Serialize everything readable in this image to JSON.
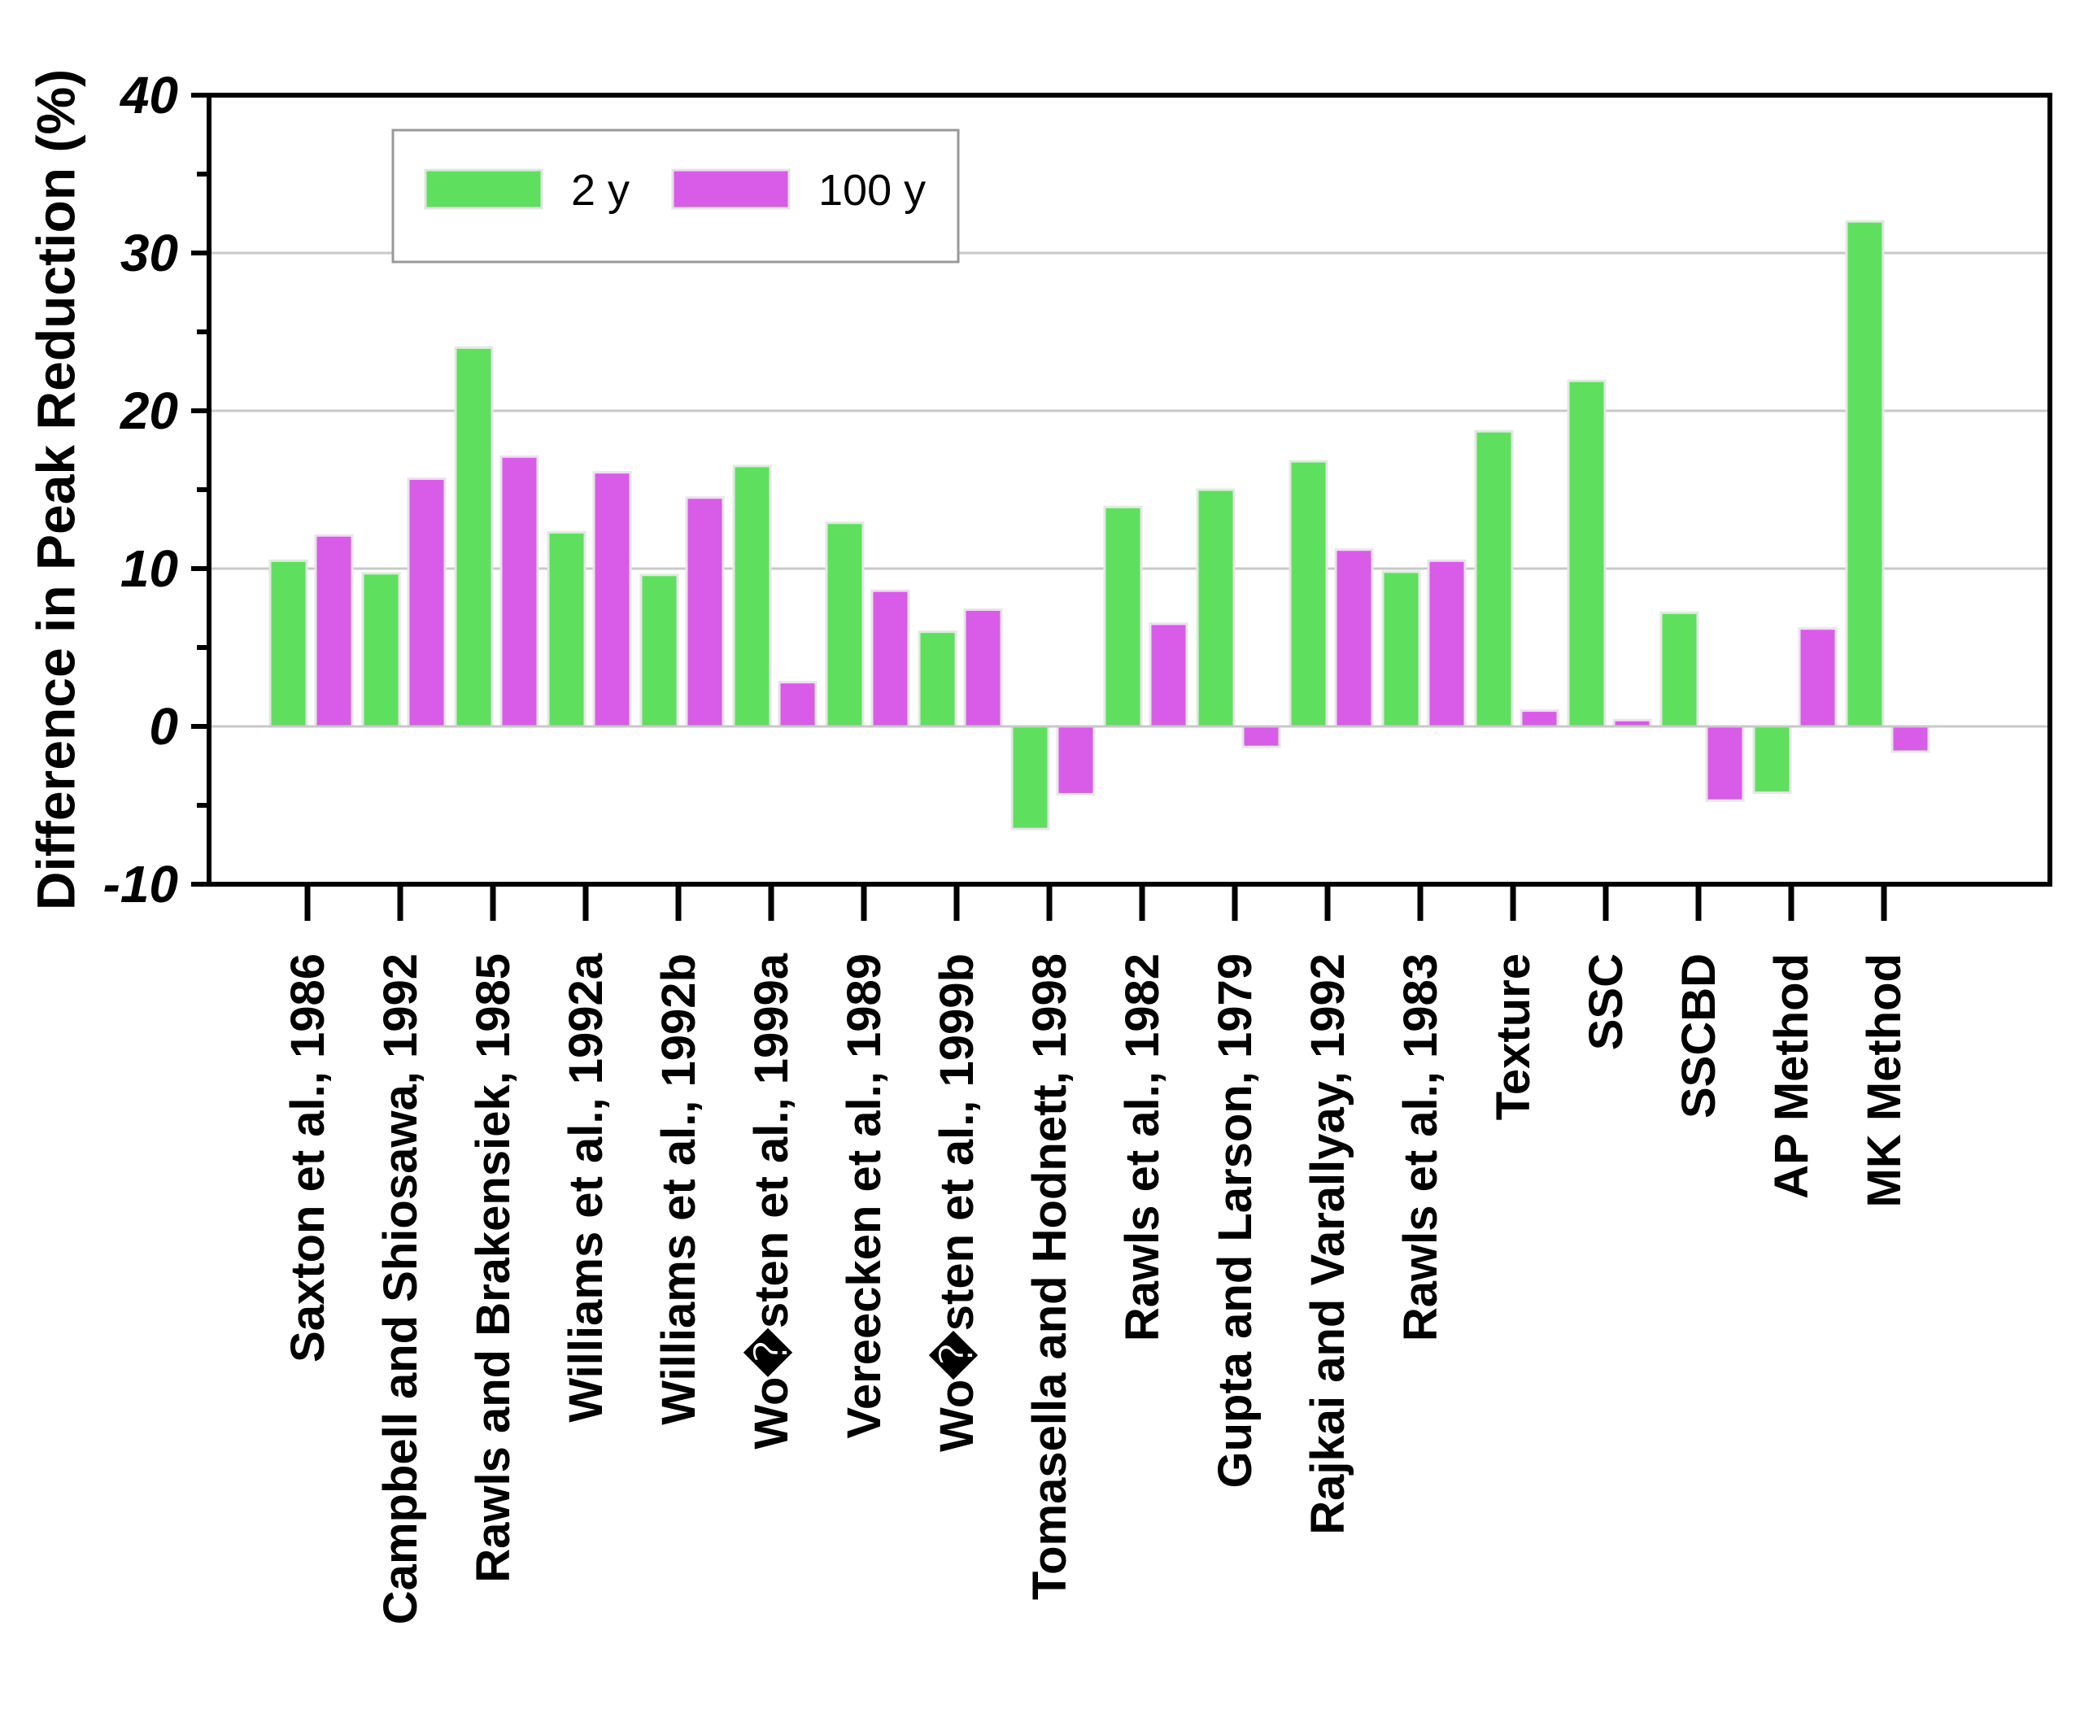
{
  "chart_data": {
    "type": "bar",
    "title": "",
    "xlabel": "",
    "ylabel": "Difference in Peak Reduction (%)",
    "ylim": [
      -10,
      40
    ],
    "yticks": [
      -10,
      0,
      10,
      20,
      30,
      40
    ],
    "grid": true,
    "legend_position": "top-left",
    "categories": [
      "Saxton et al., 1986",
      "Campbell and Shiosawa, 1992",
      "Rawls and Brakensiek, 1985",
      "Williams et al., 1992a",
      "Williams et al., 1992b",
      "Wo�sten et al., 1999a",
      "Vereecken et al., 1989",
      "Wo�sten et al., 1999b",
      "Tomasella and Hodnett, 1998",
      "Rawls et al., 1982",
      "Gupta and Larson, 1979",
      "Rajkai and Varallyay, 1992",
      "Rawls et al., 1983",
      "Texture",
      "SSC",
      "SSCBD",
      "AP Method",
      "MK Method"
    ],
    "series": [
      {
        "name": "2 y",
        "color": "#5ee05e",
        "values": [
          10.5,
          9.7,
          24.0,
          12.3,
          9.6,
          16.5,
          12.9,
          6.0,
          -6.5,
          13.9,
          15.0,
          16.8,
          9.8,
          18.7,
          21.9,
          7.2,
          -4.2,
          32.0
        ]
      },
      {
        "name": "100 y",
        "color": "#d85ce8",
        "values": [
          12.1,
          15.7,
          17.1,
          16.1,
          14.5,
          2.8,
          8.6,
          7.4,
          -4.3,
          6.5,
          -1.3,
          11.2,
          10.5,
          1.0,
          0.4,
          -4.7,
          6.2,
          -1.6
        ]
      }
    ]
  }
}
